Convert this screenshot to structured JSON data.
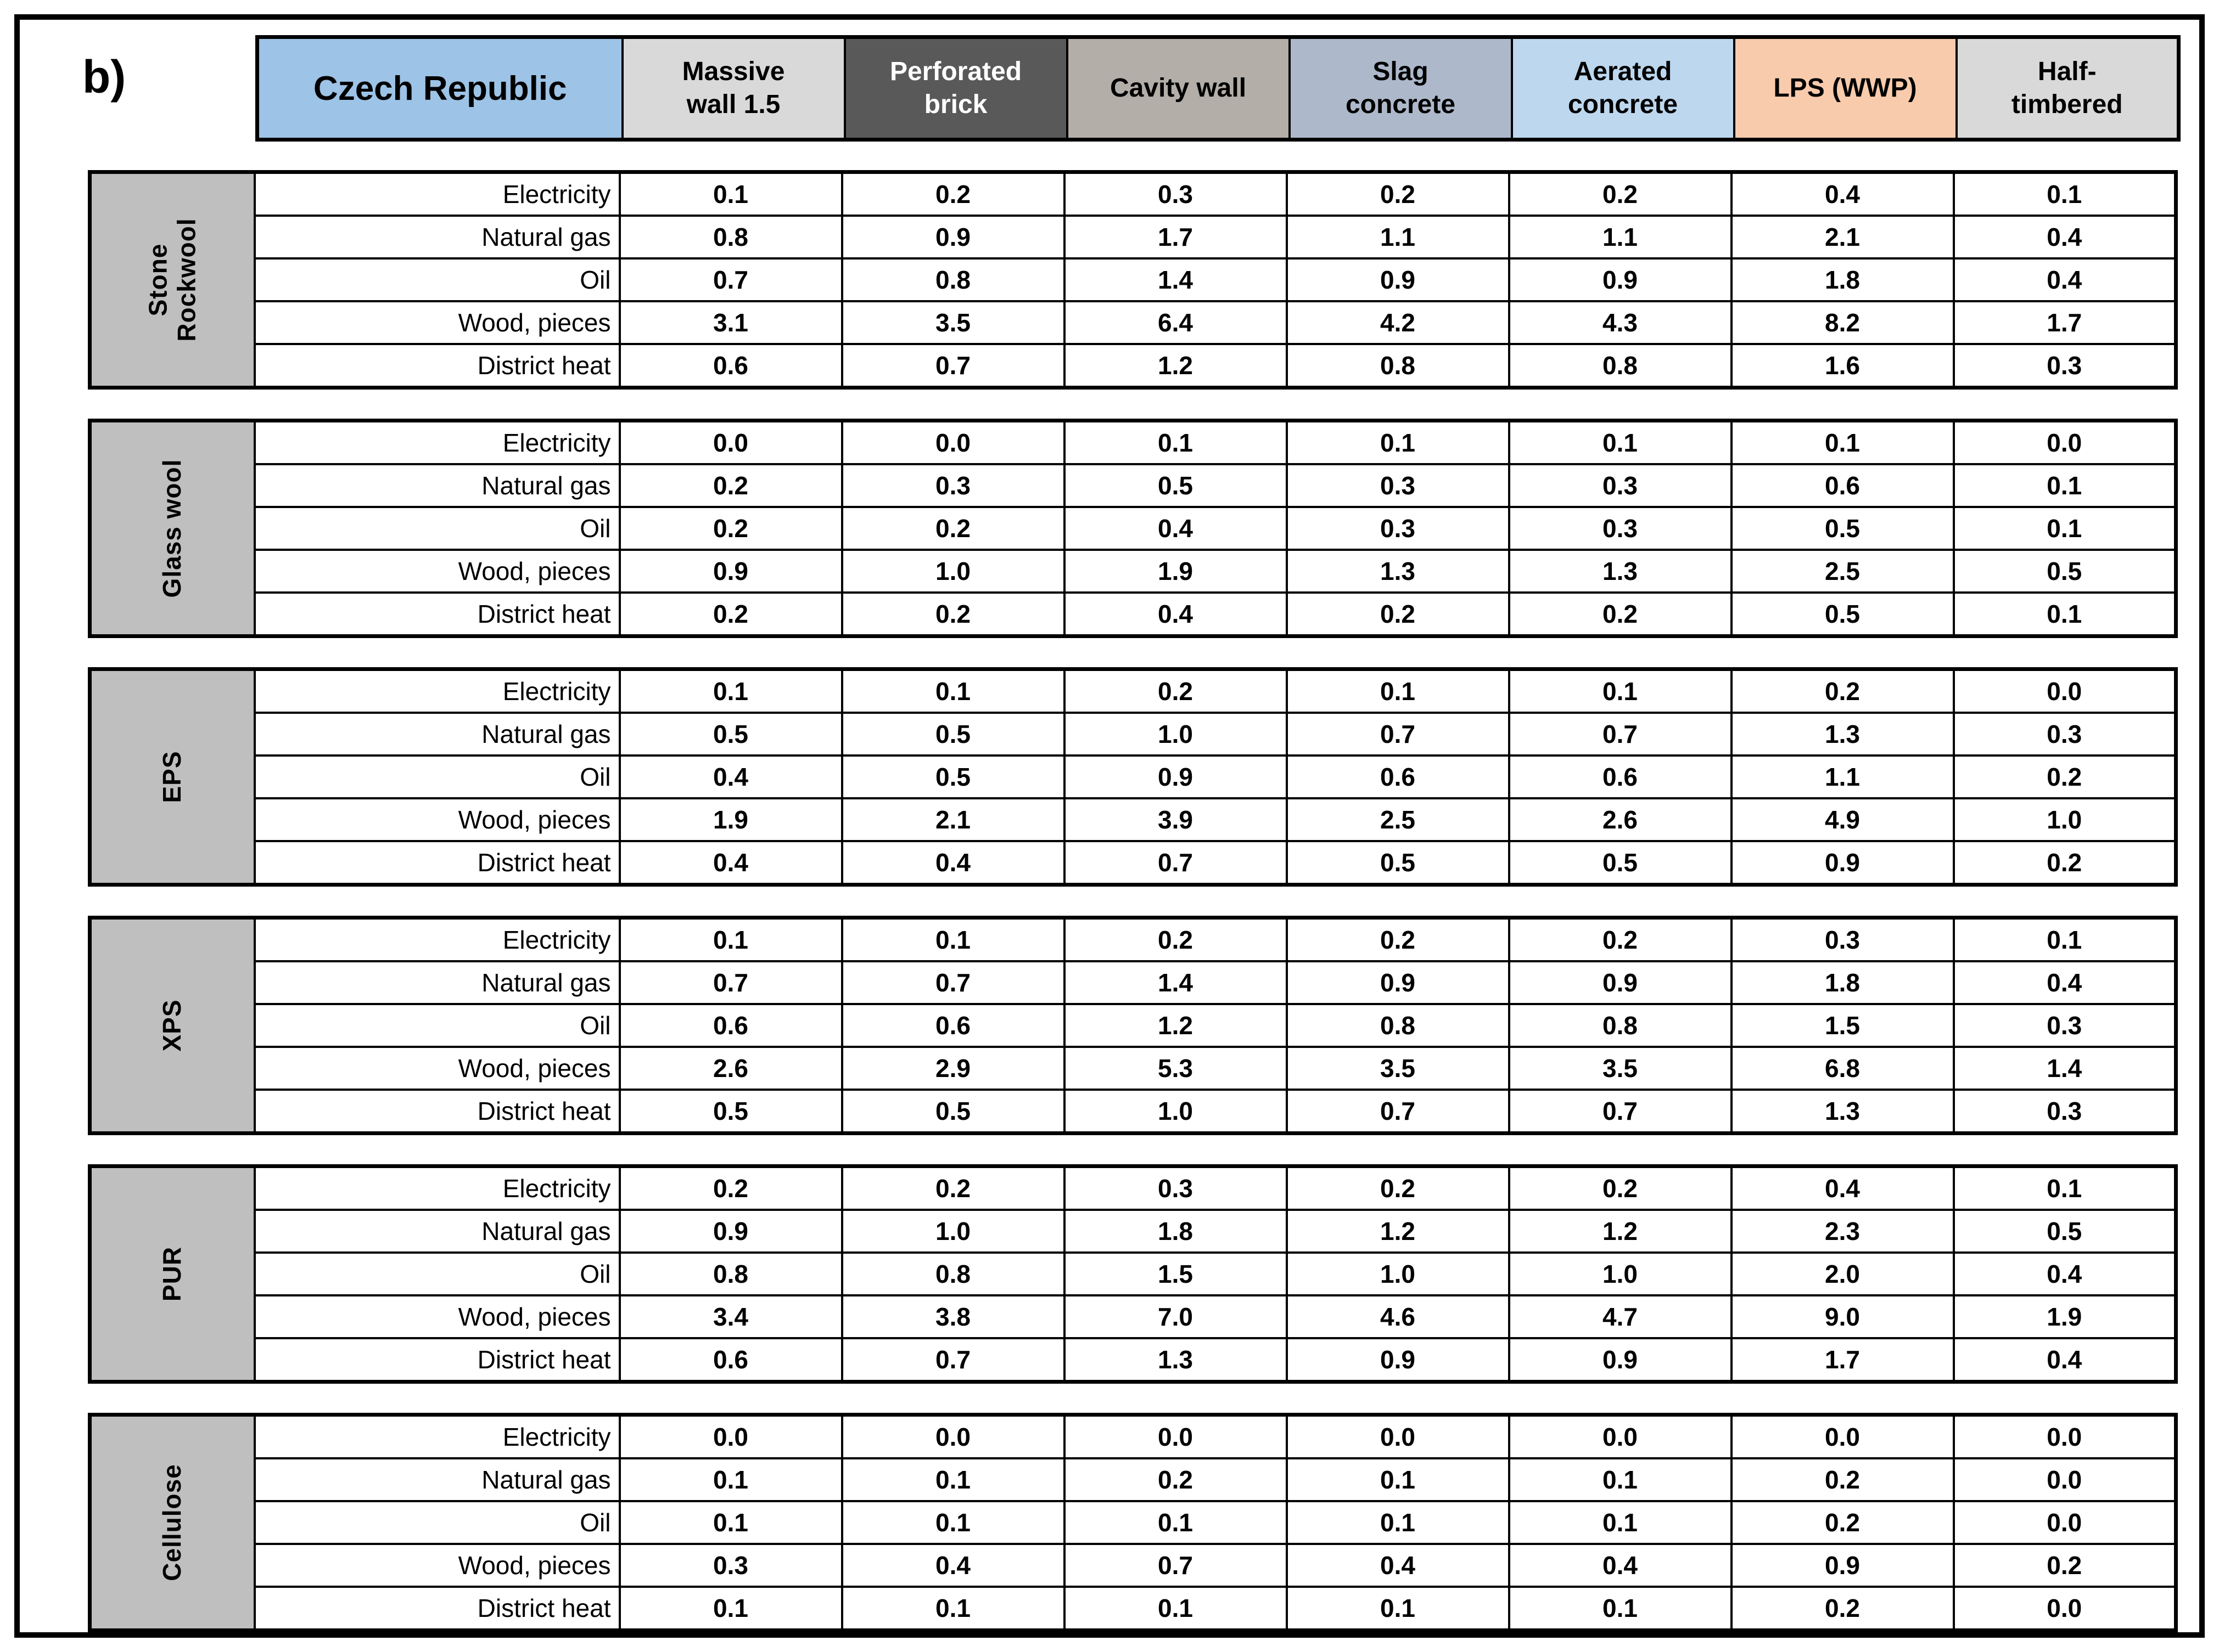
{
  "panel_label": "b)",
  "chart_data": {
    "type": "table",
    "title": "Czech Republic",
    "columns": [
      "Massive wall 1.5",
      "Perforated brick",
      "Cavity wall",
      "Slag concrete",
      "Aerated concrete",
      "LPS (WWP)",
      "Half-timbered"
    ],
    "row_labels": [
      "Electricity",
      "Natural gas",
      "Oil",
      "Wood, pieces",
      "District heat"
    ],
    "groups": [
      {
        "name": "Stone Rockwool",
        "values": [
          [
            0.1,
            0.2,
            0.3,
            0.2,
            0.2,
            0.4,
            0.1
          ],
          [
            0.8,
            0.9,
            1.7,
            1.1,
            1.1,
            2.1,
            0.4
          ],
          [
            0.7,
            0.8,
            1.4,
            0.9,
            0.9,
            1.8,
            0.4
          ],
          [
            3.1,
            3.5,
            6.4,
            4.2,
            4.3,
            8.2,
            1.7
          ],
          [
            0.6,
            0.7,
            1.2,
            0.8,
            0.8,
            1.6,
            0.3
          ]
        ]
      },
      {
        "name": "Glass wool",
        "values": [
          [
            0.0,
            0.0,
            0.1,
            0.1,
            0.1,
            0.1,
            0.0
          ],
          [
            0.2,
            0.3,
            0.5,
            0.3,
            0.3,
            0.6,
            0.1
          ],
          [
            0.2,
            0.2,
            0.4,
            0.3,
            0.3,
            0.5,
            0.1
          ],
          [
            0.9,
            1.0,
            1.9,
            1.3,
            1.3,
            2.5,
            0.5
          ],
          [
            0.2,
            0.2,
            0.4,
            0.2,
            0.2,
            0.5,
            0.1
          ]
        ]
      },
      {
        "name": "EPS",
        "values": [
          [
            0.1,
            0.1,
            0.2,
            0.1,
            0.1,
            0.2,
            0.0
          ],
          [
            0.5,
            0.5,
            1.0,
            0.7,
            0.7,
            1.3,
            0.3
          ],
          [
            0.4,
            0.5,
            0.9,
            0.6,
            0.6,
            1.1,
            0.2
          ],
          [
            1.9,
            2.1,
            3.9,
            2.5,
            2.6,
            4.9,
            1.0
          ],
          [
            0.4,
            0.4,
            0.7,
            0.5,
            0.5,
            0.9,
            0.2
          ]
        ]
      },
      {
        "name": "XPS",
        "values": [
          [
            0.1,
            0.1,
            0.2,
            0.2,
            0.2,
            0.3,
            0.1
          ],
          [
            0.7,
            0.7,
            1.4,
            0.9,
            0.9,
            1.8,
            0.4
          ],
          [
            0.6,
            0.6,
            1.2,
            0.8,
            0.8,
            1.5,
            0.3
          ],
          [
            2.6,
            2.9,
            5.3,
            3.5,
            3.5,
            6.8,
            1.4
          ],
          [
            0.5,
            0.5,
            1.0,
            0.7,
            0.7,
            1.3,
            0.3
          ]
        ]
      },
      {
        "name": "PUR",
        "values": [
          [
            0.2,
            0.2,
            0.3,
            0.2,
            0.2,
            0.4,
            0.1
          ],
          [
            0.9,
            1.0,
            1.8,
            1.2,
            1.2,
            2.3,
            0.5
          ],
          [
            0.8,
            0.8,
            1.5,
            1.0,
            1.0,
            2.0,
            0.4
          ],
          [
            3.4,
            3.8,
            7.0,
            4.6,
            4.7,
            9.0,
            1.9
          ],
          [
            0.6,
            0.7,
            1.3,
            0.9,
            0.9,
            1.7,
            0.4
          ]
        ]
      },
      {
        "name": "Cellulose",
        "values": [
          [
            0.0,
            0.0,
            0.0,
            0.0,
            0.0,
            0.0,
            0.0
          ],
          [
            0.1,
            0.1,
            0.2,
            0.1,
            0.1,
            0.2,
            0.0
          ],
          [
            0.1,
            0.1,
            0.1,
            0.1,
            0.1,
            0.2,
            0.0
          ],
          [
            0.3,
            0.4,
            0.7,
            0.4,
            0.4,
            0.9,
            0.2
          ],
          [
            0.1,
            0.1,
            0.1,
            0.1,
            0.1,
            0.2,
            0.0
          ]
        ]
      }
    ]
  },
  "ui": {
    "country_header": {
      "label": "Czech Republic",
      "bg": "#9DC3E6",
      "fg": "#000000"
    },
    "header_columns": [
      {
        "lines": [
          "Massive",
          "wall 1.5"
        ],
        "bg": "#D9D9D9",
        "fg": "#000000"
      },
      {
        "lines": [
          "Perforated",
          "brick"
        ],
        "bg": "#595959",
        "fg": "#FFFFFF"
      },
      {
        "lines": [
          "Cavity wall"
        ],
        "bg": "#B3AEA8",
        "fg": "#000000"
      },
      {
        "lines": [
          "Slag",
          "concrete"
        ],
        "bg": "#ADB9CA",
        "fg": "#000000"
      },
      {
        "lines": [
          "Aerated",
          "concrete"
        ],
        "bg": "#BDD7EE",
        "fg": "#000000"
      },
      {
        "lines": [
          "LPS (WWP)"
        ],
        "bg": "#F8CBAD",
        "fg": "#000000"
      },
      {
        "lines": [
          "Half-",
          "timbered"
        ],
        "bg": "#D9D9D9",
        "fg": "#000000"
      }
    ],
    "group_label_bg": "#BFBFBF"
  }
}
